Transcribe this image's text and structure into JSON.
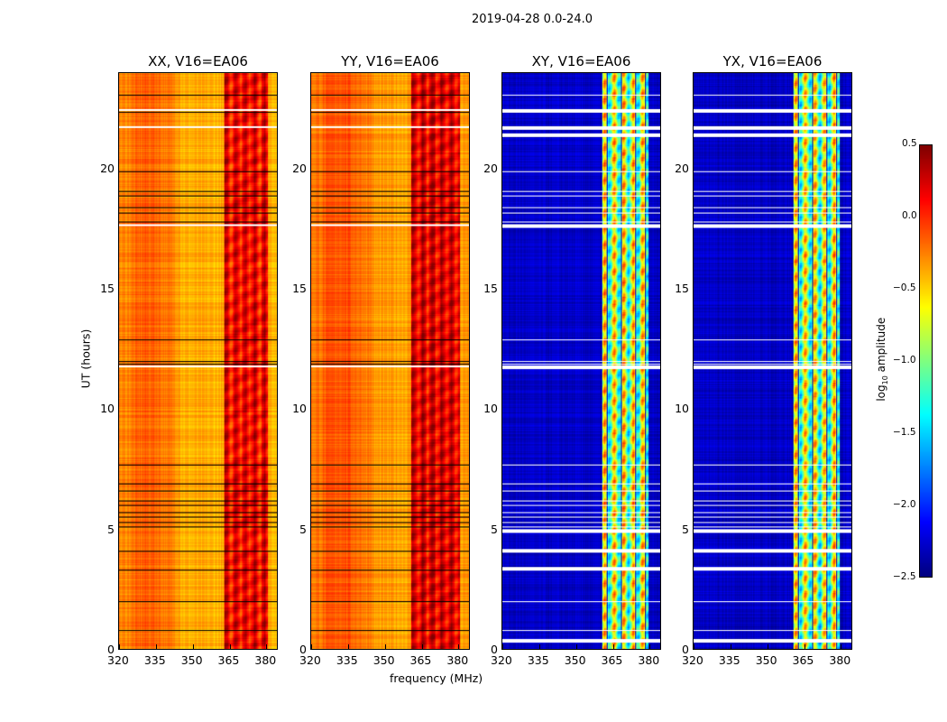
{
  "chart_data": {
    "type": "heatmap",
    "title": "2019-04-28 0.0-24.0",
    "xlabel": "frequency (MHz)",
    "ylabel": "UT (hours)",
    "xlim": [
      320,
      385
    ],
    "ylim": [
      0,
      24
    ],
    "xticks": [
      "320",
      "335",
      "350",
      "365",
      "380"
    ],
    "yticks": [
      "0",
      "5",
      "10",
      "15",
      "20"
    ],
    "colorbar": {
      "label_main": "log",
      "label_sub": "10",
      "label_rest": " amplitude",
      "range": [
        -2.5,
        0.5
      ],
      "ticks": [
        "0.5",
        "0.0",
        "−0.5",
        "−1.0",
        "−1.5",
        "−2.0",
        "−2.5"
      ],
      "colormap": "jet"
    },
    "panels": [
      {
        "title": "XX, V16=EA06",
        "background_level": -0.4,
        "band_level": 0.15,
        "band_mhz": [
          363,
          381
        ]
      },
      {
        "title": "YY, V16=EA06",
        "background_level": -0.35,
        "band_level": 0.2,
        "band_mhz": [
          361,
          381
        ]
      },
      {
        "title": "XY, V16=EA06",
        "background_level": -2.3,
        "band_level": -0.9,
        "band_mhz": [
          361,
          380
        ]
      },
      {
        "title": "YX, V16=EA06",
        "background_level": -2.3,
        "band_level": -0.9,
        "band_mhz": [
          361,
          380
        ]
      }
    ],
    "flagged_hours_xy": [
      0.4,
      3.4,
      4.15,
      5.0,
      11.8,
      17.7,
      21.5,
      21.8,
      22.5
    ],
    "line_hours": [
      0.8,
      2.0,
      3.3,
      4.1,
      5.1,
      5.3,
      5.5,
      5.7,
      6.0,
      6.2,
      6.6,
      6.9,
      7.7,
      11.9,
      12.0,
      12.9,
      17.8,
      18.2,
      18.4,
      18.9,
      19.1,
      19.9,
      22.4,
      23.1
    ]
  }
}
